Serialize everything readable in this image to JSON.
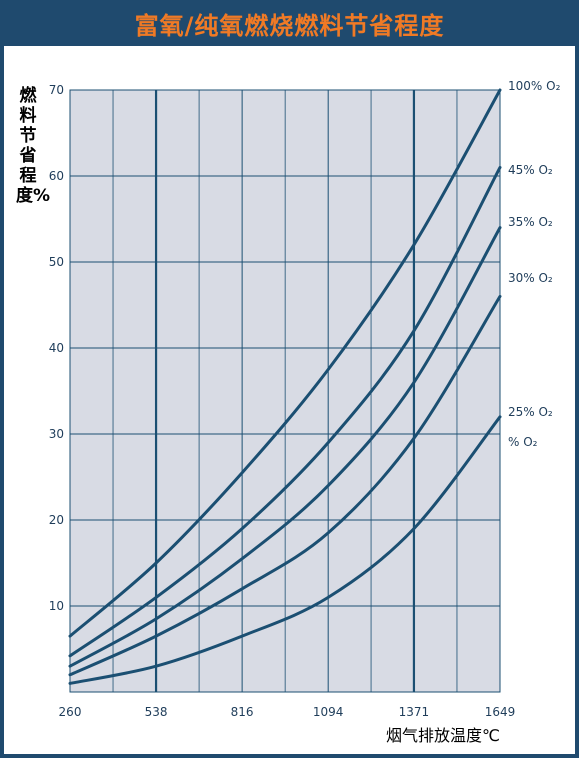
{
  "title": "富氧/纯氧燃烧燃料节省程度",
  "chart_data": {
    "type": "line",
    "title": "富氧/纯氧燃烧燃料节省程度",
    "ylabel": "燃料节省程度%",
    "xlabel": "烟气排放温度℃",
    "x_ticks": [
      260,
      538,
      816,
      1094,
      1371,
      1649
    ],
    "y_ticks": [
      10,
      20,
      30,
      40,
      50,
      60,
      70
    ],
    "xlim": [
      260,
      1649
    ],
    "ylim": [
      0,
      70
    ],
    "grid": true,
    "colors": {
      "line": "#1b4f72",
      "plot_bg": "#d8dbe4",
      "grid": "#1b4f72",
      "text": "#1f3d5a"
    },
    "series": [
      {
        "name": "100% O₂",
        "x": [
          260,
          538,
          816,
          1094,
          1371,
          1649
        ],
        "y": [
          6.5,
          15,
          25.5,
          37.5,
          52,
          70
        ]
      },
      {
        "name": "45% O₂",
        "x": [
          260,
          538,
          816,
          1094,
          1371,
          1649
        ],
        "y": [
          4.2,
          11,
          19,
          29,
          42,
          61
        ]
      },
      {
        "name": "35% O₂",
        "x": [
          260,
          538,
          816,
          1094,
          1371,
          1649
        ],
        "y": [
          3,
          8.5,
          15.5,
          24,
          36,
          54
        ]
      },
      {
        "name": "30% O₂",
        "x": [
          260,
          538,
          816,
          1094,
          1371,
          1649
        ],
        "y": [
          2,
          6.5,
          12,
          18.5,
          29.5,
          46
        ]
      },
      {
        "name": "25% O₂",
        "x": [
          260,
          538,
          816,
          1094,
          1371,
          1649
        ],
        "y": [
          1,
          3,
          6.5,
          11,
          19,
          32
        ]
      }
    ],
    "extra_label": "% O₂"
  }
}
